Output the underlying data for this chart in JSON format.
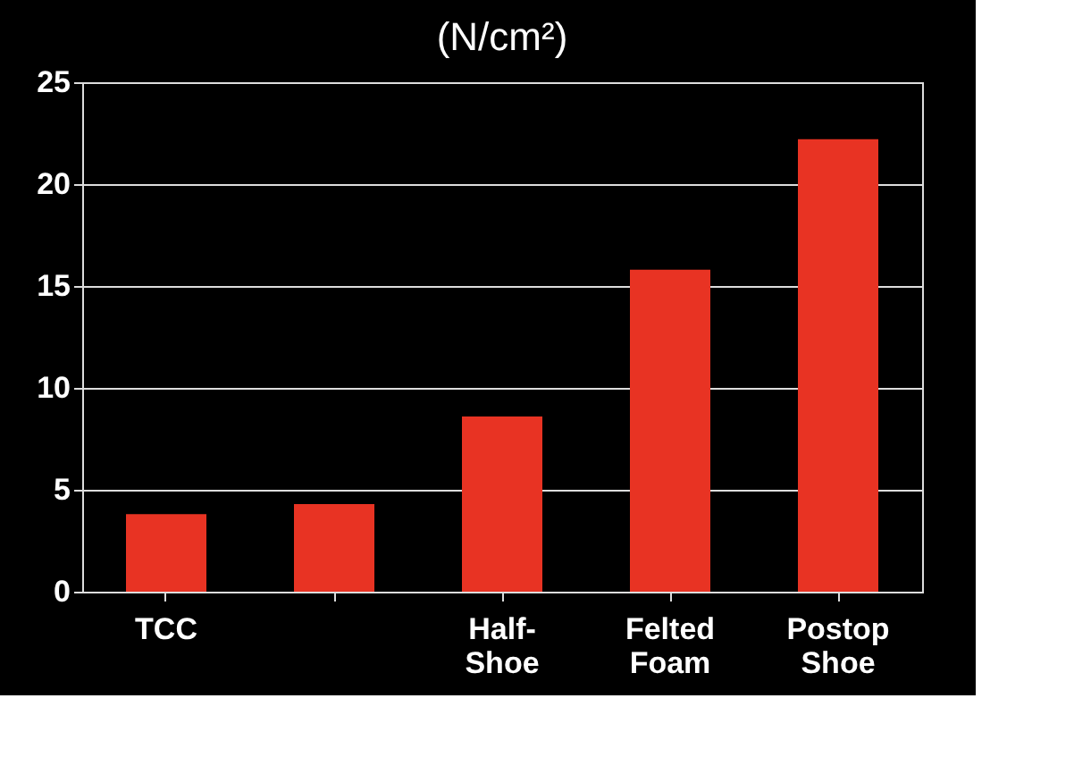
{
  "chart_data": {
    "type": "bar",
    "title": "(N/cm²)",
    "categories": [
      "TCC",
      null,
      "Half-\nShoe",
      "Felted\nFoam",
      "Postop\nShoe"
    ],
    "values": [
      3.8,
      4.3,
      8.6,
      15.8,
      22.2
    ],
    "color": "#e83323",
    "ylim": [
      0,
      25
    ],
    "yticks": [
      0,
      5,
      10,
      15,
      20,
      25
    ],
    "grid": "y"
  }
}
